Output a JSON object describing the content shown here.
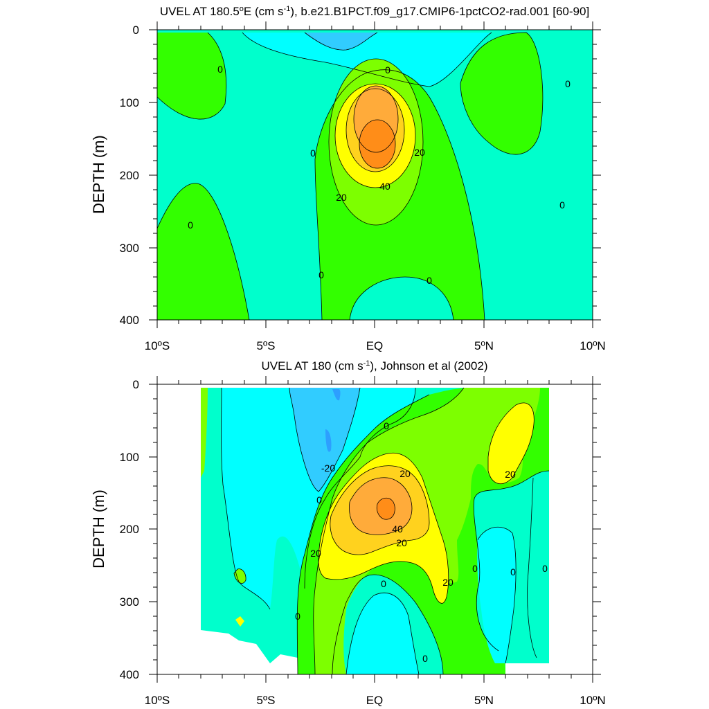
{
  "chart_data": [
    {
      "type": "contour",
      "title": "UVEL AT 180.5ºE (cm s-1), b.e21.B1PCT.f09_g17.CMIP6-1pctCO2-rad.001 [60-90]",
      "title_parts": {
        "prefix": "UVEL AT 180.5",
        "deg": "o",
        "mid": "E (cm s",
        "sup": "-1",
        "suffix": "), b.e21.B1PCT.f09_g17.CMIP6-1pctCO2-rad.001 [60-90]"
      },
      "xlabel": "",
      "ylabel": "DEPTH (m)",
      "x_ticks": [
        "10ºS",
        "5ºS",
        "EQ",
        "5ºN",
        "10ºN"
      ],
      "y_ticks": [
        "0",
        "100",
        "200",
        "300",
        "400"
      ],
      "xlim": [
        -10,
        10
      ],
      "ylim": [
        400,
        0
      ],
      "contour_interval": 10,
      "contour_line_labels": [
        "0",
        "0",
        "0",
        "0",
        "0",
        "0",
        "0",
        "0",
        "20",
        "20",
        "40"
      ],
      "features": {
        "core": {
          "lat": 0,
          "depth": 155,
          "max_value": 50
        }
      }
    },
    {
      "type": "contour",
      "title": "UVEL AT 180 (cm s-1), Johnson et al (2002)",
      "title_parts": {
        "prefix": "UVEL AT 180 (cm s",
        "sup": "-1",
        "suffix": "), Johnson et al (2002)"
      },
      "xlabel": "",
      "ylabel": "DEPTH (m)",
      "x_ticks": [
        "10ºS",
        "5ºS",
        "EQ",
        "5ºN",
        "10ºN"
      ],
      "y_ticks": [
        "0",
        "100",
        "200",
        "300",
        "400"
      ],
      "xlim": [
        -10,
        10
      ],
      "ylim": [
        400,
        0
      ],
      "data_lat_range": [
        -8,
        8
      ],
      "contour_interval": 10,
      "contour_line_labels": [
        "0",
        "0",
        "0",
        "0",
        "0",
        "0",
        "0",
        "0",
        "-20",
        "20",
        "20",
        "20",
        "20",
        "20",
        "40"
      ],
      "features": {
        "core": {
          "lat": 0.5,
          "depth": 170,
          "max_value": 60
        }
      }
    }
  ],
  "colors": {
    "neg30": "#2d9fff",
    "neg20": "#31ccff",
    "neg10": "#00ffff",
    "zero": "#00ffcc",
    "pos10": "#33ff00",
    "pos20": "#7dff00",
    "pos30": "#ffff00",
    "pos40": "#ffd21e",
    "pos50": "#ffab3a",
    "pos60": "#ff8d18"
  }
}
